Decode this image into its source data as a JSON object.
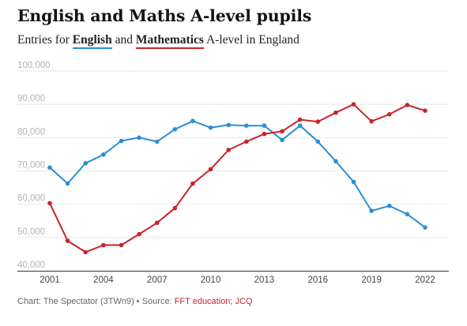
{
  "header": {
    "title": "English and Maths A-level pupils",
    "subtitle_before": "Entries for",
    "subtitle_english": "English",
    "subtitle_and": "and",
    "subtitle_maths": "Mathematics",
    "subtitle_after": "A-level in England"
  },
  "footer": {
    "credit": "Chart: The Spectator (3TWn9) • Source:",
    "source": "FFT education; JCQ"
  },
  "colors": {
    "english": "#2b8fd4",
    "maths": "#c9242b",
    "grid": "#e6e6e6",
    "axis": "#333333"
  },
  "chart_data": {
    "type": "line",
    "title": "English and Maths A-level pupils",
    "subtitle": "Entries for English and Mathematics A-level in England",
    "x": [
      2001,
      2002,
      2003,
      2004,
      2005,
      2006,
      2007,
      2008,
      2009,
      2010,
      2011,
      2012,
      2013,
      2014,
      2015,
      2016,
      2017,
      2018,
      2019,
      2020,
      2021,
      2022
    ],
    "series": [
      {
        "name": "English",
        "color": "#2b8fd4",
        "values": [
          71000,
          66200,
          72300,
          74900,
          79000,
          80000,
          78800,
          82500,
          85000,
          83000,
          83800,
          83600,
          83600,
          79300,
          83600,
          78800,
          72900,
          66700,
          58000,
          59500,
          57000,
          53000
        ]
      },
      {
        "name": "Mathematics",
        "color": "#c9242b",
        "values": [
          60300,
          49000,
          45600,
          47700,
          47700,
          51000,
          54400,
          58800,
          66200,
          70500,
          76300,
          78800,
          81100,
          81900,
          85400,
          84800,
          87500,
          90000,
          84900,
          87000,
          89800,
          88100
        ]
      }
    ],
    "ylim": [
      40000,
      100000
    ],
    "yticks": [
      40000,
      50000,
      60000,
      70000,
      80000,
      90000,
      100000
    ],
    "ytick_labels": [
      "40,000",
      "50,000",
      "60,000",
      "70,000",
      "80,000",
      "90,000",
      "100,000"
    ],
    "xticks": [
      2001,
      2004,
      2007,
      2010,
      2013,
      2016,
      2019,
      2022
    ],
    "xtick_labels": [
      "2001",
      "2004",
      "2007",
      "2010",
      "2013",
      "2016",
      "2019",
      "2022"
    ],
    "grid": true,
    "legend": "inline in subtitle"
  }
}
